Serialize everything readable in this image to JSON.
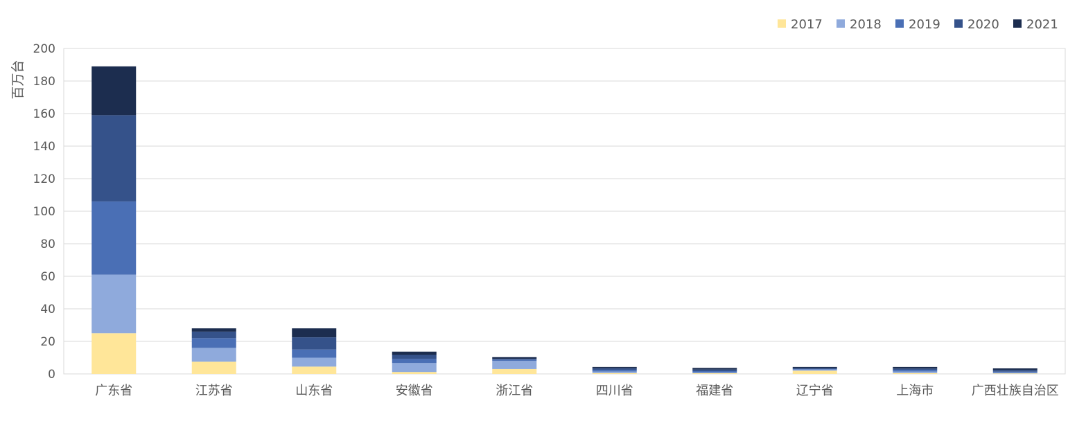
{
  "chart_data": {
    "type": "bar",
    "stacked": true,
    "ylabel": "百万台",
    "ylim": [
      0,
      200
    ],
    "yticks": [
      0,
      20,
      40,
      60,
      80,
      100,
      120,
      140,
      160,
      180,
      200
    ],
    "grid": true,
    "legend_position": "top-right",
    "categories": [
      "广东省",
      "江苏省",
      "山东省",
      "安徽省",
      "浙江省",
      "四川省",
      "福建省",
      "辽宁省",
      "上海市",
      "广西壮族自治区"
    ],
    "series": [
      {
        "name": "2017",
        "color": "#FFE699",
        "values": [
          25,
          7.5,
          4.5,
          1.2,
          3,
          0.5,
          0.4,
          2,
          0.5,
          0.3
        ]
      },
      {
        "name": "2018",
        "color": "#8FAADC",
        "values": [
          36,
          8.5,
          5.5,
          5.5,
          5,
          1,
          0.5,
          0.7,
          1,
          0.5
        ]
      },
      {
        "name": "2019",
        "color": "#4A6FB5",
        "values": [
          45,
          6,
          5,
          2.5,
          0.8,
          1,
          0.8,
          0.3,
          1,
          0.6
        ]
      },
      {
        "name": "2020",
        "color": "#35528A",
        "values": [
          53,
          4,
          7.5,
          2.5,
          0.5,
          1,
          1,
          0.6,
          0.8,
          1
        ]
      },
      {
        "name": "2021",
        "color": "#1C2D4F",
        "values": [
          30,
          2,
          5.5,
          2,
          1,
          0.8,
          1,
          0.7,
          1,
          1
        ]
      }
    ]
  }
}
